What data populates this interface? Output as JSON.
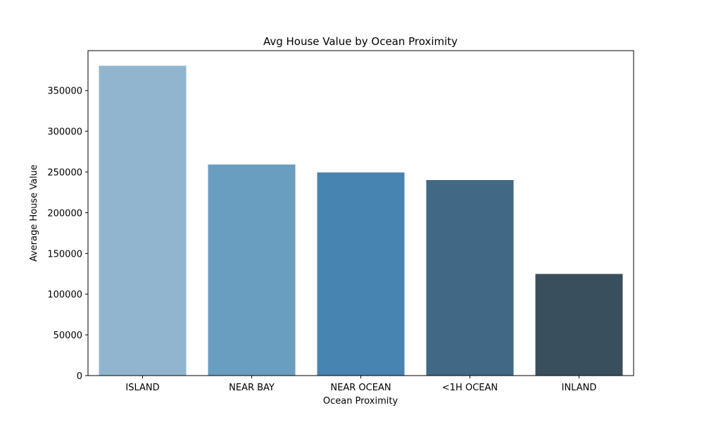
{
  "chart_data": {
    "type": "bar",
    "title": "Avg House Value by Ocean Proximity",
    "xlabel": "Ocean Proximity",
    "ylabel": "Average House Value",
    "categories": [
      "ISLAND",
      "NEAR BAY",
      "NEAR OCEAN",
      "<1H OCEAN",
      "INLAND"
    ],
    "values": [
      380440,
      259212,
      249434,
      240084,
      124805
    ],
    "colors": [
      "#92b5cf",
      "#6a9ec0",
      "#4884b2",
      "#416986",
      "#3a4f5e"
    ],
    "ylim": [
      0,
      399000
    ],
    "yticks": [
      0,
      50000,
      100000,
      150000,
      200000,
      250000,
      300000,
      350000
    ],
    "ytick_labels": [
      "0",
      "50000",
      "100000",
      "150000",
      "200000",
      "250000",
      "300000",
      "350000"
    ],
    "grid": false,
    "legend": "none"
  }
}
